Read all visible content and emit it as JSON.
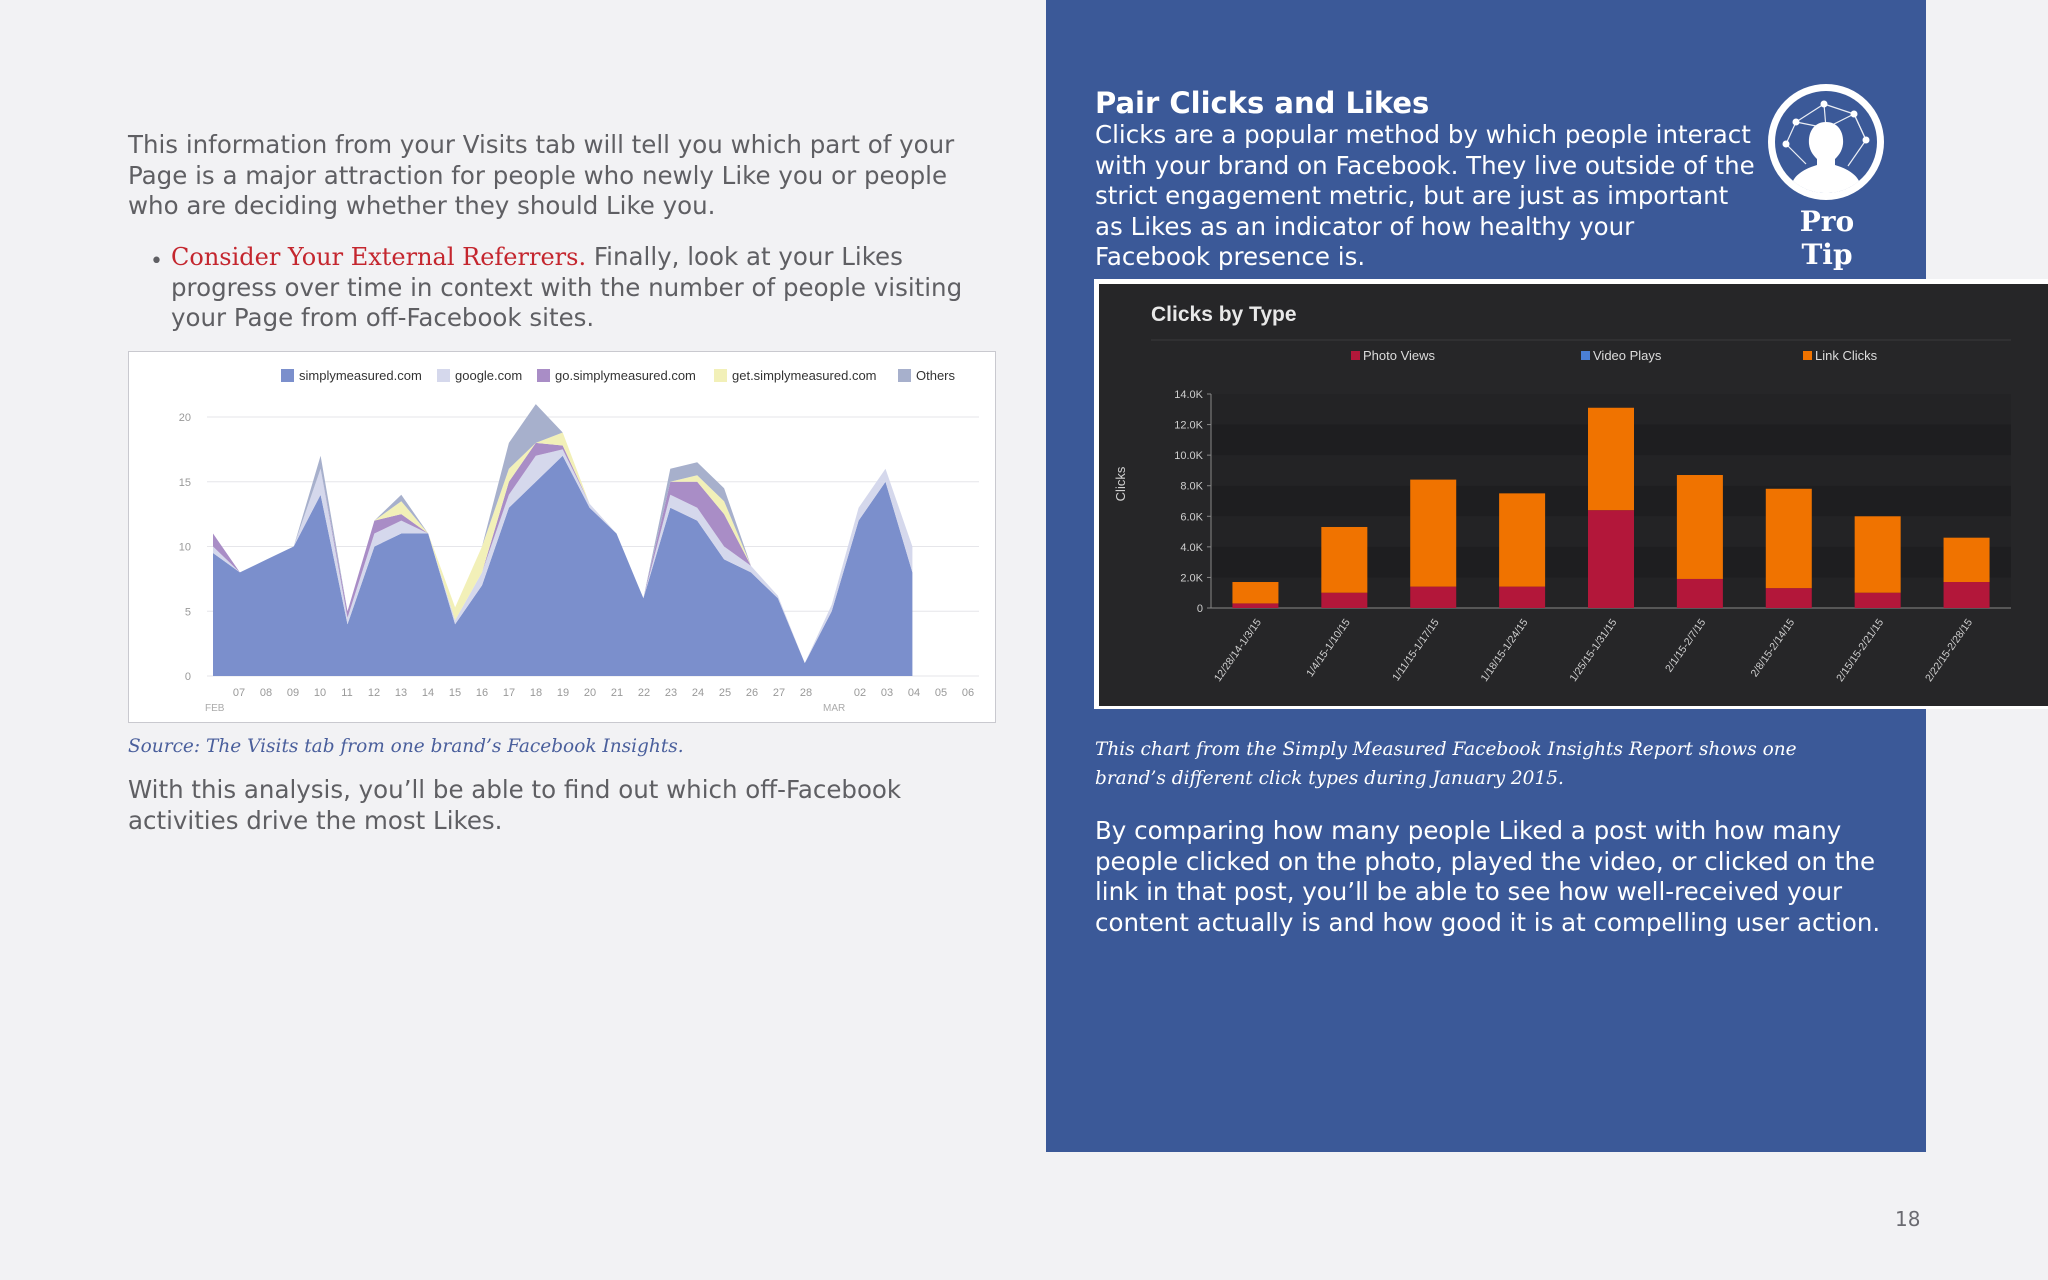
{
  "left": {
    "intro": "This information from your Visits tab will tell you which part of your Page is a major attraction for people who newly Like you or people who are deciding whether they should Like you.",
    "bullet_marker": "•",
    "bullet_highlight": "Consider Your External Referrers.",
    "bullet_text": " Finally, look at your Likes progress over time in context with the number of people visiting your Page from off-Facebook sites.",
    "caption": "Source: The Visits tab from one brand’s Facebook Insights.",
    "closing": "With this analysis, you’ll be able to find out which off-Facebook activities drive the most Likes."
  },
  "right": {
    "tip_title": "Pair Clicks and Likes",
    "tip_body": "Clicks are a popular method by which people interact with your brand on Facebook. They live outside of the strict engagement metric, but are just as important as Likes as an indicator of how healthy your Facebook presence is.",
    "pro_tip_label": "Pro Tip",
    "pro_tip_icon": "head-network-icon",
    "caption": "This chart from the Simply Measured Facebook Insights Report shows one brand’s different click types during January 2015.",
    "paragraph": "By comparing how many people Liked a post with how many people clicked on the photo, played the video, or clicked on the link in that post, you’ll be able to see how well-received your content actually is and how good it is at compelling user action."
  },
  "page_number": "18",
  "colors": {
    "panel": "#3b5998",
    "highlight": "#c4262e",
    "photo_views": "#b3173a",
    "link_clicks": "#f07300",
    "video_plays": "#4a7fd6"
  },
  "chart_data": [
    {
      "type": "area",
      "stacked": true,
      "x_labels": [
        "07",
        "08",
        "09",
        "10",
        "11",
        "12",
        "13",
        "14",
        "15",
        "16",
        "17",
        "18",
        "19",
        "20",
        "21",
        "22",
        "23",
        "24",
        "25",
        "26",
        "27",
        "28",
        "02",
        "03",
        "04",
        "05",
        "06"
      ],
      "x_group_labels": [
        "FEB",
        "MAR"
      ],
      "y_ticks": [
        "0",
        "5",
        "10",
        "15",
        "20"
      ],
      "ylim": [
        0,
        20
      ],
      "grid": true,
      "legend_position": "top",
      "series": [
        {
          "name": "simplymeasured.com",
          "color": "#7b8fcc",
          "values": [
            9.5,
            8,
            9,
            10,
            14,
            4,
            10,
            11,
            11,
            4,
            7,
            13,
            15,
            17,
            13,
            11,
            6,
            13,
            12,
            9,
            8,
            6,
            1,
            5,
            12,
            15,
            8
          ]
        },
        {
          "name": "google.com",
          "color": "#d5d8ec",
          "values": [
            0.5,
            0,
            0,
            0,
            2,
            0.5,
            1,
            1,
            0,
            0.3,
            1,
            1,
            2,
            0.5,
            0.3,
            0,
            0,
            1,
            1,
            1,
            0.5,
            0.2,
            0,
            0.5,
            1,
            1,
            2
          ]
        },
        {
          "name": "go.simplymeasured.com",
          "color": "#a98dc6",
          "values": [
            1,
            0,
            0,
            0,
            0,
            0.5,
            1,
            0.5,
            0,
            0,
            0,
            1,
            1,
            0.3,
            0,
            0,
            0,
            1,
            2,
            2.5,
            0,
            0,
            0,
            0,
            0,
            0,
            0
          ]
        },
        {
          "name": "get.simplymeasured.com",
          "color": "#f2f0b8",
          "values": [
            0,
            0,
            0,
            0,
            0,
            0,
            0,
            1,
            0,
            1,
            2,
            1,
            0,
            1,
            0,
            0,
            0,
            0,
            0.5,
            1,
            0,
            0,
            0,
            0,
            0,
            0,
            0
          ]
        },
        {
          "name": "Others",
          "color": "#a7b0cc",
          "values": [
            0,
            0,
            0,
            0,
            1,
            0,
            0,
            0.5,
            0,
            0,
            0,
            2,
            3,
            0,
            0,
            0,
            0,
            1,
            1,
            1,
            0,
            0,
            0,
            0,
            0,
            0,
            0
          ]
        }
      ]
    },
    {
      "type": "bar",
      "stacked": true,
      "title": "Clicks by Type",
      "ylabel": "Clicks",
      "categories": [
        "12/28/14-1/3/15",
        "1/4/15-1/10/15",
        "1/11/15-1/17/15",
        "1/18/15-1/24/15",
        "1/25/15-1/31/15",
        "2/1/15-2/7/15",
        "2/8/15-2/14/15",
        "2/15/15-2/21/15",
        "2/22/15-2/28/15"
      ],
      "y_ticks": [
        "0",
        "2.0K",
        "4.0K",
        "6.0K",
        "8.0K",
        "10.0K",
        "12.0K",
        "14.0K"
      ],
      "ylim": [
        0,
        14000
      ],
      "legend_position": "top",
      "series": [
        {
          "name": "Photo Views",
          "color": "#b3173a",
          "values": [
            300,
            1000,
            1400,
            1400,
            6400,
            1900,
            1300,
            1000,
            1700
          ]
        },
        {
          "name": "Video Plays",
          "color": "#4a7fd6",
          "values": [
            0,
            0,
            0,
            0,
            0,
            0,
            0,
            0,
            0
          ]
        },
        {
          "name": "Link Clicks",
          "color": "#f07300",
          "values": [
            1400,
            4300,
            7000,
            6100,
            6700,
            6800,
            6500,
            5000,
            2900
          ]
        }
      ]
    }
  ]
}
